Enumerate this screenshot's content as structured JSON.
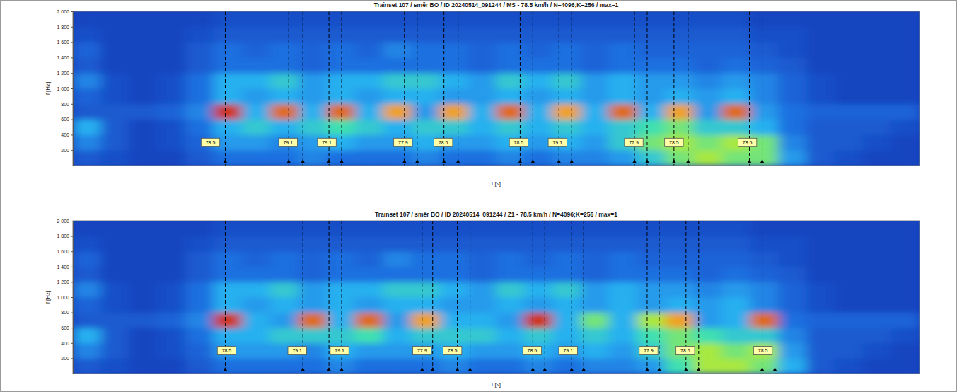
{
  "chart_data": [
    {
      "type": "heatmap",
      "title": "Trainset 107 / směr BO / ID 20240514_091244 / MS - 78.5 km/h / N=4096;K=256 / max=1",
      "x_label": "t [s]",
      "y_label": "f [Hz]",
      "xlim": [
        0,
        12
      ],
      "ylim": [
        0,
        2000
      ],
      "yticks": [
        {
          "value": 200,
          "label": "200"
        },
        {
          "value": 400,
          "label": "400"
        },
        {
          "value": 600,
          "label": "600"
        },
        {
          "value": 800,
          "label": "800"
        },
        {
          "value": 1000,
          "label": "1 000"
        },
        {
          "value": 1200,
          "label": "1 200"
        },
        {
          "value": 1400,
          "label": "1 400"
        },
        {
          "value": 1600,
          "label": "1 600"
        },
        {
          "value": 1800,
          "label": "1 800"
        },
        {
          "value": 2000,
          "label": "2 000"
        }
      ],
      "tick_labels": "y",
      "zlim": [
        0,
        1
      ],
      "t_bins": [
        0,
        0.4,
        0.8,
        1.2,
        1.6,
        2,
        2.4,
        2.8,
        3.2,
        3.6,
        4,
        4.4,
        4.8,
        5.2,
        5.6,
        6,
        6.4,
        6.8,
        7.2,
        7.6,
        8,
        8.4,
        8.8,
        9.2,
        9.6,
        10,
        10.4,
        10.8,
        11.2,
        11.6,
        12
      ],
      "f_bins": [
        0,
        200,
        400,
        600,
        800,
        1000,
        1200,
        1400,
        1600,
        1800,
        2000
      ],
      "cells": [
        [
          0.3,
          0.25,
          0.2,
          0.2,
          0.3,
          0.4,
          0.4,
          0.4,
          0.45,
          0.4,
          0.4,
          0.4,
          0.45,
          0.4,
          0.4,
          0.45,
          0.4,
          0.45,
          0.45,
          0.5,
          0.6,
          0.7,
          0.75,
          0.7,
          0.7,
          0.5,
          0.3,
          0.25,
          0.2,
          0.2
        ],
        [
          0.45,
          0.3,
          0.2,
          0.25,
          0.35,
          0.5,
          0.5,
          0.45,
          0.5,
          0.55,
          0.5,
          0.5,
          0.55,
          0.5,
          0.5,
          0.55,
          0.5,
          0.55,
          0.5,
          0.6,
          0.7,
          0.75,
          0.7,
          0.75,
          0.7,
          0.45,
          0.3,
          0.3,
          0.25,
          0.2
        ],
        [
          0.55,
          0.3,
          0.2,
          0.25,
          0.4,
          0.55,
          0.6,
          0.55,
          0.6,
          0.65,
          0.6,
          0.55,
          0.6,
          0.6,
          0.55,
          0.6,
          0.55,
          0.6,
          0.55,
          0.6,
          0.65,
          0.7,
          0.6,
          0.6,
          0.55,
          0.4,
          0.3,
          0.3,
          0.3,
          0.25
        ],
        [
          0.3,
          0.3,
          0.3,
          0.35,
          0.45,
          0.95,
          0.55,
          0.9,
          0.55,
          0.9,
          0.55,
          0.85,
          0.5,
          0.85,
          0.55,
          0.9,
          0.55,
          0.85,
          0.55,
          0.9,
          0.55,
          0.85,
          0.5,
          0.9,
          0.5,
          0.4,
          0.35,
          0.35,
          0.35,
          0.35
        ],
        [
          0.35,
          0.25,
          0.2,
          0.25,
          0.4,
          0.55,
          0.5,
          0.55,
          0.5,
          0.55,
          0.5,
          0.55,
          0.55,
          0.5,
          0.5,
          0.55,
          0.5,
          0.55,
          0.5,
          0.55,
          0.5,
          0.55,
          0.5,
          0.55,
          0.45,
          0.35,
          0.25,
          0.2,
          0.2,
          0.2
        ],
        [
          0.45,
          0.25,
          0.2,
          0.25,
          0.4,
          0.55,
          0.55,
          0.6,
          0.5,
          0.55,
          0.55,
          0.6,
          0.6,
          0.55,
          0.5,
          0.6,
          0.55,
          0.6,
          0.5,
          0.55,
          0.5,
          0.5,
          0.45,
          0.5,
          0.45,
          0.35,
          0.25,
          0.2,
          0.2,
          0.2
        ],
        [
          0.3,
          0.2,
          0.2,
          0.2,
          0.3,
          0.4,
          0.4,
          0.4,
          0.35,
          0.4,
          0.4,
          0.4,
          0.4,
          0.4,
          0.35,
          0.4,
          0.4,
          0.4,
          0.35,
          0.4,
          0.4,
          0.4,
          0.35,
          0.4,
          0.35,
          0.3,
          0.2,
          0.2,
          0.2,
          0.2
        ],
        [
          0.35,
          0.2,
          0.2,
          0.2,
          0.3,
          0.4,
          0.35,
          0.4,
          0.35,
          0.4,
          0.35,
          0.45,
          0.4,
          0.4,
          0.35,
          0.4,
          0.35,
          0.4,
          0.35,
          0.4,
          0.35,
          0.35,
          0.35,
          0.35,
          0.3,
          0.25,
          0.2,
          0.2,
          0.2,
          0.2
        ],
        [
          0.25,
          0.2,
          0.2,
          0.2,
          0.25,
          0.3,
          0.3,
          0.3,
          0.3,
          0.3,
          0.3,
          0.3,
          0.3,
          0.3,
          0.3,
          0.3,
          0.3,
          0.3,
          0.3,
          0.3,
          0.3,
          0.3,
          0.3,
          0.3,
          0.25,
          0.25,
          0.2,
          0.2,
          0.2,
          0.2
        ],
        [
          0.2,
          0.2,
          0.2,
          0.2,
          0.2,
          0.25,
          0.25,
          0.25,
          0.25,
          0.25,
          0.25,
          0.25,
          0.25,
          0.25,
          0.25,
          0.25,
          0.25,
          0.25,
          0.25,
          0.25,
          0.25,
          0.25,
          0.25,
          0.25,
          0.2,
          0.2,
          0.2,
          0.2,
          0.2,
          0.2
        ]
      ],
      "axles": [
        2.16,
        3.06,
        3.26,
        3.63,
        3.81,
        4.7,
        4.88,
        5.26,
        5.46,
        6.34,
        6.52,
        6.89,
        7.07,
        7.96,
        8.14,
        8.52,
        8.72,
        9.59,
        9.77
      ],
      "speed_labels": {
        "f": 300,
        "t": [
          1.95,
          3.05,
          3.6,
          4.68,
          5.25,
          6.32,
          6.87,
          7.95,
          8.52,
          9.56
        ],
        "values": [
          78.5,
          79.1,
          79.1,
          77.9,
          78.5,
          78.5,
          79.1,
          77.9,
          78.5,
          78.5
        ]
      }
    },
    {
      "type": "heatmap",
      "title": "Trainset 107 / směr BO / ID 20240514_091244 / Z1 - 78.5 km/h / N=4096;K=256 / max=1",
      "x_label": "t [s]",
      "y_label": "f [Hz]",
      "xlim": [
        0,
        12
      ],
      "ylim": [
        0,
        2000
      ],
      "yticks": [
        {
          "value": 200,
          "label": "200"
        },
        {
          "value": 400,
          "label": "400"
        },
        {
          "value": 600,
          "label": "600"
        },
        {
          "value": 800,
          "label": "800"
        },
        {
          "value": 1000,
          "label": "1 000"
        },
        {
          "value": 1200,
          "label": "1 200"
        },
        {
          "value": 1400,
          "label": "1 400"
        },
        {
          "value": 1600,
          "label": "1 600"
        },
        {
          "value": 1800,
          "label": "1 800"
        },
        {
          "value": 2000,
          "label": "2 000"
        }
      ],
      "tick_labels": "y",
      "zlim": [
        0,
        1
      ],
      "t_bins": [
        0,
        0.4,
        0.8,
        1.2,
        1.6,
        2,
        2.4,
        2.8,
        3.2,
        3.6,
        4,
        4.4,
        4.8,
        5.2,
        5.6,
        6,
        6.4,
        6.8,
        7.2,
        7.6,
        8,
        8.4,
        8.8,
        9.2,
        9.6,
        10,
        10.4,
        10.8,
        11.2,
        11.6,
        12
      ],
      "f_bins": [
        0,
        200,
        400,
        600,
        800,
        1000,
        1200,
        1400,
        1600,
        1800,
        2000
      ],
      "cells": [
        [
          0.3,
          0.25,
          0.2,
          0.2,
          0.3,
          0.4,
          0.4,
          0.4,
          0.4,
          0.45,
          0.4,
          0.4,
          0.4,
          0.45,
          0.4,
          0.4,
          0.45,
          0.4,
          0.45,
          0.45,
          0.5,
          0.65,
          0.75,
          0.75,
          0.7,
          0.55,
          0.3,
          0.25,
          0.2,
          0.2
        ],
        [
          0.45,
          0.3,
          0.2,
          0.25,
          0.35,
          0.5,
          0.5,
          0.5,
          0.45,
          0.55,
          0.5,
          0.5,
          0.5,
          0.55,
          0.5,
          0.5,
          0.55,
          0.5,
          0.55,
          0.5,
          0.6,
          0.7,
          0.75,
          0.7,
          0.75,
          0.5,
          0.3,
          0.3,
          0.25,
          0.2
        ],
        [
          0.55,
          0.3,
          0.2,
          0.25,
          0.4,
          0.55,
          0.55,
          0.6,
          0.6,
          0.6,
          0.65,
          0.55,
          0.6,
          0.6,
          0.6,
          0.55,
          0.6,
          0.55,
          0.6,
          0.55,
          0.65,
          0.7,
          0.65,
          0.6,
          0.6,
          0.45,
          0.3,
          0.3,
          0.3,
          0.25
        ],
        [
          0.3,
          0.3,
          0.3,
          0.35,
          0.45,
          0.95,
          0.55,
          0.5,
          0.9,
          0.55,
          0.9,
          0.5,
          0.85,
          0.55,
          0.55,
          0.5,
          0.95,
          0.55,
          0.7,
          0.55,
          0.75,
          0.85,
          0.5,
          0.55,
          0.9,
          0.4,
          0.35,
          0.35,
          0.35,
          0.35
        ],
        [
          0.35,
          0.25,
          0.2,
          0.25,
          0.4,
          0.55,
          0.5,
          0.55,
          0.5,
          0.55,
          0.5,
          0.55,
          0.55,
          0.5,
          0.5,
          0.55,
          0.5,
          0.55,
          0.5,
          0.55,
          0.5,
          0.55,
          0.5,
          0.55,
          0.45,
          0.35,
          0.25,
          0.2,
          0.2,
          0.2
        ],
        [
          0.45,
          0.25,
          0.2,
          0.25,
          0.4,
          0.55,
          0.55,
          0.6,
          0.5,
          0.55,
          0.55,
          0.6,
          0.6,
          0.55,
          0.5,
          0.6,
          0.55,
          0.6,
          0.5,
          0.55,
          0.5,
          0.5,
          0.45,
          0.5,
          0.45,
          0.35,
          0.25,
          0.2,
          0.2,
          0.2
        ],
        [
          0.3,
          0.2,
          0.2,
          0.2,
          0.3,
          0.4,
          0.4,
          0.4,
          0.35,
          0.4,
          0.4,
          0.4,
          0.4,
          0.4,
          0.35,
          0.4,
          0.4,
          0.4,
          0.35,
          0.4,
          0.4,
          0.4,
          0.35,
          0.4,
          0.35,
          0.3,
          0.2,
          0.2,
          0.2,
          0.2
        ],
        [
          0.35,
          0.2,
          0.2,
          0.2,
          0.3,
          0.4,
          0.35,
          0.4,
          0.35,
          0.4,
          0.35,
          0.45,
          0.4,
          0.4,
          0.35,
          0.4,
          0.35,
          0.4,
          0.35,
          0.4,
          0.35,
          0.35,
          0.35,
          0.35,
          0.3,
          0.25,
          0.2,
          0.2,
          0.2,
          0.2
        ],
        [
          0.25,
          0.2,
          0.2,
          0.2,
          0.25,
          0.3,
          0.3,
          0.3,
          0.3,
          0.3,
          0.3,
          0.3,
          0.3,
          0.3,
          0.3,
          0.3,
          0.3,
          0.3,
          0.3,
          0.3,
          0.3,
          0.3,
          0.3,
          0.3,
          0.25,
          0.25,
          0.2,
          0.2,
          0.2,
          0.2
        ],
        [
          0.2,
          0.2,
          0.2,
          0.2,
          0.2,
          0.25,
          0.25,
          0.25,
          0.25,
          0.25,
          0.25,
          0.25,
          0.25,
          0.25,
          0.25,
          0.25,
          0.25,
          0.25,
          0.25,
          0.25,
          0.25,
          0.25,
          0.25,
          0.25,
          0.2,
          0.2,
          0.2,
          0.2,
          0.2,
          0.2
        ]
      ],
      "axles": [
        2.16,
        3.26,
        3.63,
        3.81,
        4.95,
        5.1,
        5.45,
        5.63,
        6.52,
        6.69,
        7.07,
        7.24,
        8.14,
        8.31,
        8.69,
        8.87,
        9.77,
        9.95
      ],
      "speed_labels": {
        "f": 300,
        "t": [
          2.18,
          3.18,
          3.78,
          4.95,
          5.38,
          6.51,
          7.02,
          8.16,
          8.68,
          9.78
        ],
        "values": [
          78.5,
          79.1,
          79.1,
          77.9,
          78.5,
          78.5,
          79.1,
          77.9,
          78.5,
          78.5
        ]
      }
    }
  ]
}
